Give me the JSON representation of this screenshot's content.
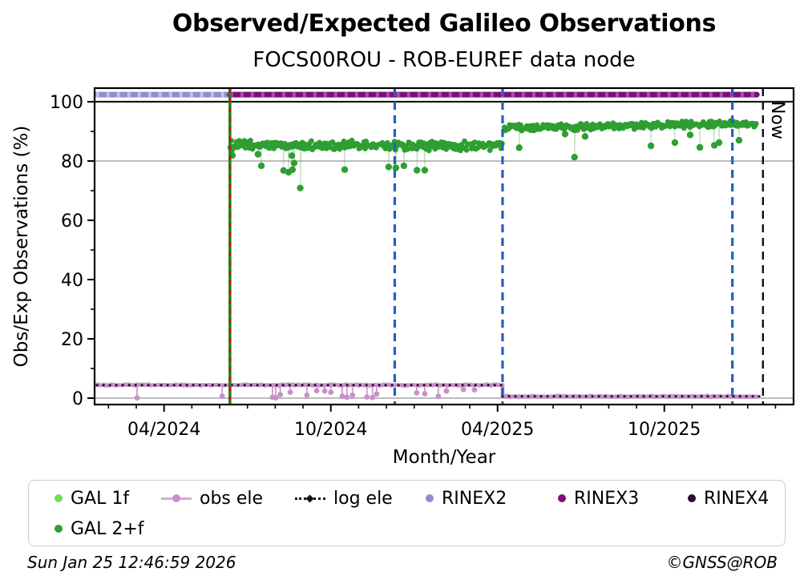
{
  "header": {
    "title": "Observed/Expected Galileo Observations",
    "subtitle": "FOCS00ROU - ROB-EUREF data node"
  },
  "footer": {
    "timestamp": "Sun Jan 25 12:46:59 2026",
    "copyright": "©GNSS@ROB"
  },
  "chart_data": {
    "type": "scatter",
    "title": "Observed/Expected Galileo Observations",
    "subtitle": "FOCS00ROU - ROB-EUREF data node",
    "xlabel": "Month/Year",
    "ylabel": "Obs/Exp Observations (%)",
    "now_label": "Now",
    "x_axis": {
      "unit": "months_since_2024_01_01",
      "min": 0.5,
      "max": 25.65,
      "major_ticks": [
        {
          "m": 3,
          "label": "04/2024"
        },
        {
          "m": 9,
          "label": "10/2024"
        },
        {
          "m": 15,
          "label": "04/2025"
        },
        {
          "m": 21,
          "label": "10/2025"
        }
      ],
      "minor_tick_every_months": 1
    },
    "y_axis": {
      "min": -2.2,
      "max": 104.6,
      "major_ticks": [
        0,
        20,
        40,
        60,
        80,
        100
      ],
      "minor_ticks": [
        10,
        30,
        50,
        70,
        90
      ]
    },
    "reference_lines": {
      "hline_100": {
        "value": 100,
        "color": "#1a1a1a"
      },
      "gridlines": [
        80,
        0
      ],
      "grid_color": "#b3b3b3"
    },
    "series": {
      "rinex2": {
        "label": "RINEX2",
        "color": "#8f8fcc",
        "dash_color": "#c3c3e9",
        "start": 0.55,
        "end": 5.37,
        "value": 102.4
      },
      "rinex3": {
        "label": "RINEX3",
        "color": "#7c0d7c",
        "dash_color": "#a84fa8",
        "start": 5.37,
        "end": 24.33,
        "value": 102.4
      },
      "rinex4": {
        "label": "RINEX4",
        "color": "#2b0b2b",
        "plotted": false
      },
      "gal_1f": {
        "label": "GAL 1f",
        "color": "#6fe055",
        "plotted": false
      },
      "gal_2pf": {
        "label": "GAL 2+f",
        "color": "#2f9e33",
        "segments": [
          {
            "start": 5.38,
            "end": 15.18,
            "mean_start": 85.3,
            "mean_end": 85.1,
            "jitter": 1.15,
            "step": 0.0365
          },
          {
            "start": 15.25,
            "end": 24.33,
            "mean_start": 91.2,
            "mean_end": 92.6,
            "jitter": 0.85,
            "step": 0.0365
          }
        ],
        "outliers": [
          [
            5.46,
            81.9
          ],
          [
            6.38,
            82.3
          ],
          [
            6.5,
            78.4
          ],
          [
            7.3,
            76.8
          ],
          [
            7.48,
            76.2
          ],
          [
            7.6,
            81.8
          ],
          [
            7.62,
            77.1
          ],
          [
            7.68,
            79.3
          ],
          [
            7.9,
            70.9
          ],
          [
            9.5,
            77.1
          ],
          [
            11.08,
            78.0
          ],
          [
            11.34,
            77.7
          ],
          [
            11.63,
            78.4
          ],
          [
            12.1,
            76.9
          ],
          [
            12.38,
            76.9
          ],
          [
            15.78,
            84.5
          ],
          [
            17.43,
            89.1
          ],
          [
            17.77,
            81.3
          ],
          [
            18.15,
            88.3
          ],
          [
            20.52,
            85.1
          ],
          [
            21.38,
            86.2
          ],
          [
            21.93,
            88.8
          ],
          [
            22.28,
            84.6
          ],
          [
            22.8,
            85.3
          ],
          [
            22.97,
            86.2
          ],
          [
            23.69,
            87.0
          ]
        ]
      },
      "obs_ele": {
        "label": "obs ele",
        "color": "#ca8fca",
        "path": [
          [
            0.55,
            4.4
          ],
          [
            15.18,
            4.4
          ],
          [
            15.18,
            0.6
          ],
          [
            24.33,
            0.6
          ]
        ],
        "dips": [
          [
            2.03,
            0.1
          ],
          [
            5.09,
            0.7
          ],
          [
            6.9,
            0.3
          ],
          [
            7.02,
            0.1
          ],
          [
            7.18,
            1.2
          ],
          [
            7.54,
            2.0
          ],
          [
            8.14,
            1.0
          ],
          [
            8.49,
            2.5
          ],
          [
            8.78,
            2.4
          ],
          [
            9.0,
            2.0
          ],
          [
            9.41,
            0.7
          ],
          [
            9.58,
            0.3
          ],
          [
            9.78,
            1.0
          ],
          [
            10.3,
            0.4
          ],
          [
            10.5,
            0.2
          ],
          [
            10.65,
            1.4
          ],
          [
            12.09,
            1.8
          ],
          [
            12.38,
            1.5
          ],
          [
            12.87,
            0.6
          ],
          [
            13.16,
            2.4
          ],
          [
            13.77,
            2.9
          ],
          [
            14.17,
            2.8
          ]
        ]
      },
      "log_ele": {
        "label": "log ele",
        "color": "#111111",
        "path": [
          [
            0.55,
            4.4
          ],
          [
            15.18,
            4.4
          ],
          [
            15.18,
            0.6
          ],
          [
            24.5,
            0.6
          ],
          [
            24.5,
            0.05
          ]
        ]
      }
    },
    "vlines": [
      {
        "m": 5.37,
        "style": "solid",
        "color": "#168c16",
        "overlay_dash_color": "#d01010",
        "name": "event-line-green-red"
      },
      {
        "m": 11.3,
        "style": "dashed",
        "color": "#2161c0",
        "name": "event-line-blue-1"
      },
      {
        "m": 15.18,
        "style": "dashed",
        "color": "#2161c0",
        "name": "event-line-blue-2"
      },
      {
        "m": 23.45,
        "style": "dashed",
        "color": "#2161c0",
        "name": "event-line-blue-3"
      },
      {
        "m": 24.55,
        "style": "dashed",
        "color": "#111111",
        "label": "Now",
        "name": "now-line"
      }
    ]
  },
  "legend": {
    "items": [
      {
        "label": "GAL 1f",
        "marker": "dot",
        "color": "#6fe055"
      },
      {
        "label": "GAL 2+f",
        "marker": "dot",
        "color": "#2f9e33"
      },
      {
        "label": "obs ele",
        "marker": "line-dot",
        "color": "#ca8fca"
      },
      {
        "label": "log ele",
        "marker": "dotted",
        "color": "#111111"
      },
      {
        "label": "RINEX2",
        "marker": "dot",
        "color": "#8f8fcc"
      },
      {
        "label": "RINEX3",
        "marker": "dot",
        "color": "#7c0d7c"
      },
      {
        "label": "RINEX4",
        "marker": "dot",
        "color": "#2b0b2b"
      }
    ]
  }
}
